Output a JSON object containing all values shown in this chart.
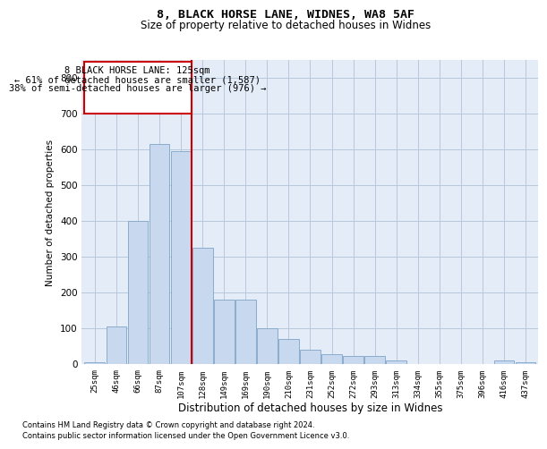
{
  "title1": "8, BLACK HORSE LANE, WIDNES, WA8 5AF",
  "title2": "Size of property relative to detached houses in Widnes",
  "xlabel": "Distribution of detached houses by size in Widnes",
  "ylabel": "Number of detached properties",
  "footer1": "Contains HM Land Registry data © Crown copyright and database right 2024.",
  "footer2": "Contains public sector information licensed under the Open Government Licence v3.0.",
  "annotation_line1": "8 BLACK HORSE LANE: 125sqm",
  "annotation_line2": "← 61% of detached houses are smaller (1,587)",
  "annotation_line3": "38% of semi-detached houses are larger (976) →",
  "red_line_x": 5.0,
  "bar_color": "#c8d8ee",
  "bar_edge_color": "#8aaccc",
  "red_line_color": "#cc0000",
  "grid_color": "#b8c8dc",
  "bg_color": "#e4ecf7",
  "categories": [
    "25sqm",
    "46sqm",
    "66sqm",
    "87sqm",
    "107sqm",
    "128sqm",
    "149sqm",
    "169sqm",
    "190sqm",
    "210sqm",
    "231sqm",
    "252sqm",
    "272sqm",
    "293sqm",
    "313sqm",
    "334sqm",
    "355sqm",
    "375sqm",
    "396sqm",
    "416sqm",
    "437sqm"
  ],
  "values": [
    5,
    105,
    400,
    615,
    595,
    325,
    180,
    180,
    100,
    70,
    40,
    28,
    22,
    22,
    10,
    0,
    0,
    0,
    0,
    10,
    5
  ],
  "ylim": [
    0,
    850
  ],
  "yticks": [
    0,
    100,
    200,
    300,
    400,
    500,
    600,
    700,
    800
  ]
}
